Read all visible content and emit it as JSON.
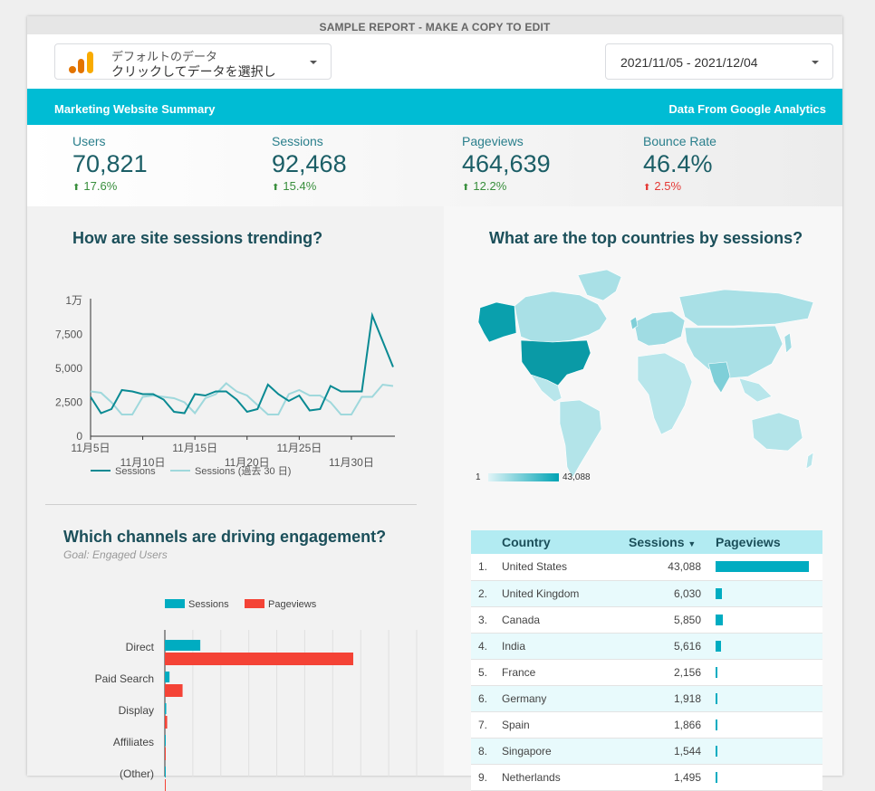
{
  "banner": "SAMPLE REPORT - MAKE A COPY TO EDIT",
  "datasource": {
    "line1": "デフォルトのデータ",
    "line2": "クリックしてデータを選択し"
  },
  "date_range": "2021/11/05 - 2021/12/04",
  "header": {
    "left": "Marketing Website Summary",
    "right": "Data From Google Analytics"
  },
  "kpis": [
    {
      "label": "Users",
      "value": "70,821",
      "delta": "17.6%"
    },
    {
      "label": "Sessions",
      "value": "92,468",
      "delta": "15.4%"
    },
    {
      "label": "Pageviews",
      "value": "464,639",
      "delta": "12.2%"
    },
    {
      "label": "Bounce Rate",
      "value": "46.4%",
      "delta": "2.5%"
    }
  ],
  "colors": {
    "teal": "#00bcd4",
    "good": "#388e3c",
    "bad": "#e53935",
    "series_main": "#0a8a93",
    "series_prev": "#9fd8dc",
    "sessions_bar": "#00acc1",
    "pageviews_bar": "#f44336"
  },
  "trend_title": "How are site sessions trending?",
  "map_title": "What are the top countries by sessions?",
  "map_scale": {
    "min": "1",
    "max": "43,088"
  },
  "channels_title": "Which channels are driving engagement?",
  "channels_subtitle": "Goal: Engaged Users",
  "chart_data": [
    {
      "type": "line",
      "yticks": [
        "0",
        "2,500",
        "5,000",
        "7,500",
        "1万"
      ],
      "ylim": [
        0,
        10000
      ],
      "xticks_top": [
        "11月5日",
        "11月15日",
        "11月25日"
      ],
      "xticks_bottom": [
        "11月10日",
        "11月20日",
        "11月30日"
      ],
      "x": [
        "11/5",
        "11/6",
        "11/7",
        "11/8",
        "11/9",
        "11/10",
        "11/11",
        "11/12",
        "11/13",
        "11/14",
        "11/15",
        "11/16",
        "11/17",
        "11/18",
        "11/19",
        "11/20",
        "11/21",
        "11/22",
        "11/23",
        "11/24",
        "11/25",
        "11/26",
        "11/27",
        "11/28",
        "11/29",
        "11/30",
        "12/1",
        "12/2",
        "12/3",
        "12/4"
      ],
      "series": [
        {
          "name": "Sessions",
          "values": [
            2900,
            1700,
            2000,
            3400,
            3300,
            3100,
            3100,
            2700,
            1800,
            1700,
            3100,
            3000,
            3300,
            3300,
            2700,
            1800,
            2000,
            3800,
            3100,
            2600,
            3000,
            1900,
            2000,
            3700,
            3300,
            3300,
            3300,
            8900,
            7000,
            5100
          ]
        },
        {
          "name": "Sessions (過去 30 日)",
          "values": [
            3300,
            3200,
            2500,
            1600,
            1600,
            2900,
            3000,
            2900,
            2800,
            2500,
            1700,
            2800,
            3100,
            3900,
            3300,
            3000,
            2300,
            1600,
            1600,
            3100,
            3400,
            3000,
            3000,
            2500,
            1600,
            1600,
            2900,
            2900,
            3800,
            3700
          ]
        }
      ]
    },
    {
      "type": "bar",
      "orientation": "horizontal",
      "categories": [
        "Direct",
        "Paid Search",
        "Display",
        "Affiliates",
        "(Other)"
      ],
      "series": [
        {
          "name": "Sessions",
          "values": [
            38000,
            5000,
            1500,
            300,
            100
          ]
        },
        {
          "name": "Pageviews",
          "values": [
            202000,
            19000,
            2500,
            500,
            200
          ]
        }
      ],
      "xlim": [
        0,
        270000
      ]
    }
  ],
  "countries": {
    "headers": {
      "country": "Country",
      "sessions": "Sessions",
      "pageviews": "Pageviews"
    },
    "rows": [
      {
        "idx": "1.",
        "name": "United States",
        "sessions": "43,088",
        "pv": 1.0
      },
      {
        "idx": "2.",
        "name": "United Kingdom",
        "sessions": "6,030",
        "pv": 0.07
      },
      {
        "idx": "3.",
        "name": "Canada",
        "sessions": "5,850",
        "pv": 0.075
      },
      {
        "idx": "4.",
        "name": "India",
        "sessions": "5,616",
        "pv": 0.06
      },
      {
        "idx": "5.",
        "name": "France",
        "sessions": "2,156",
        "pv": 0.02
      },
      {
        "idx": "6.",
        "name": "Germany",
        "sessions": "1,918",
        "pv": 0.02
      },
      {
        "idx": "7.",
        "name": "Spain",
        "sessions": "1,866",
        "pv": 0.012
      },
      {
        "idx": "8.",
        "name": "Singapore",
        "sessions": "1,544",
        "pv": 0.015
      },
      {
        "idx": "9.",
        "name": "Netherlands",
        "sessions": "1,495",
        "pv": 0.012
      }
    ]
  }
}
